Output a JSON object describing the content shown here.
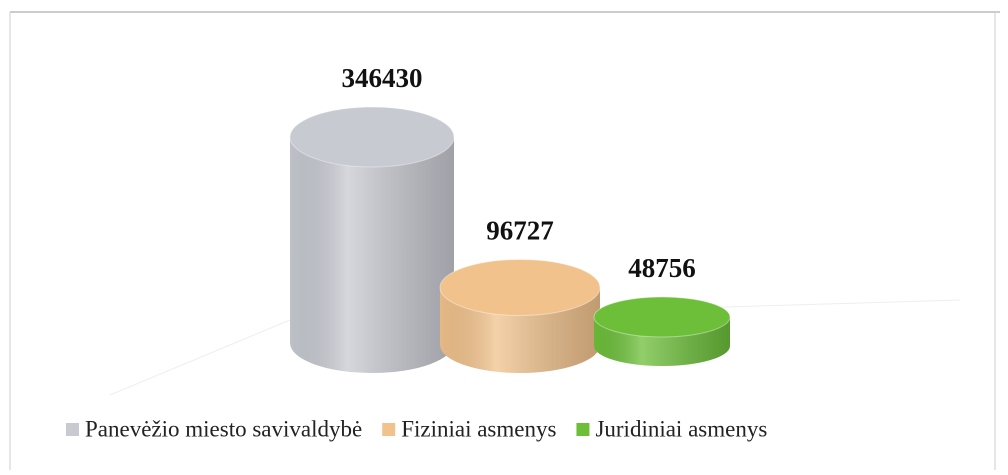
{
  "chart_data": {
    "type": "bar",
    "series": [
      {
        "name": "Panevėžio miesto savivaldybė",
        "color": "#c8cad2",
        "values": [
          346430
        ]
      },
      {
        "name": "Fiziniai asmenys",
        "color": "#f1c28c",
        "values": [
          96727
        ]
      },
      {
        "name": "Juridiniai asmenys",
        "color": "#6dbf3a",
        "values": [
          48756
        ]
      }
    ]
  }
}
